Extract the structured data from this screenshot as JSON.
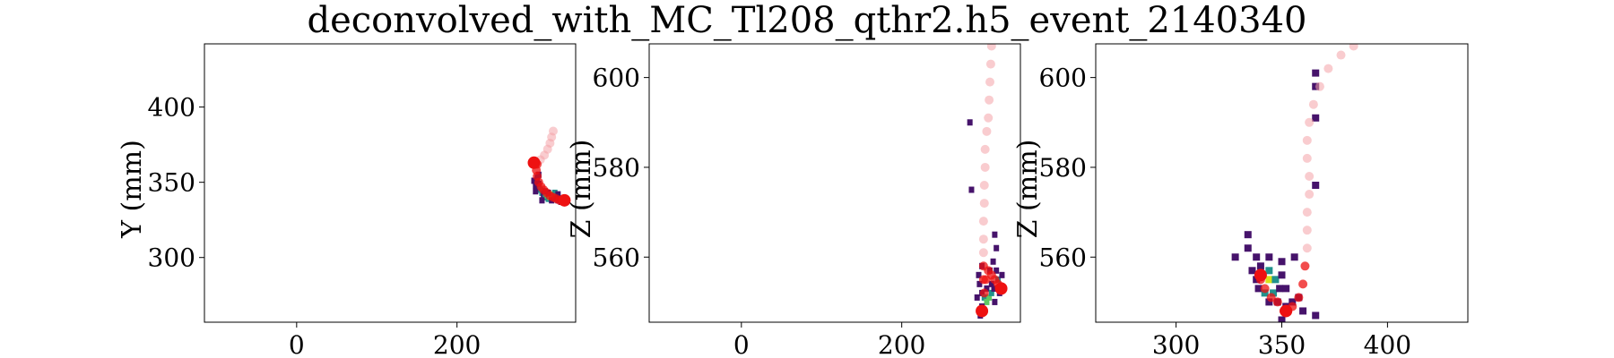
{
  "title": "deconvolved_with_MC_Tl208_qthr2.h5_event_2140340",
  "colors": {
    "track_light": "#f4a3a8",
    "track_dark": "#ee1111",
    "hit_low": "#46136b",
    "hit_mid": "#21918c",
    "hit_high": "#5ec962",
    "hit_peak": "#d8e219"
  },
  "chart_data": [
    {
      "type": "scatter",
      "panel": "xy",
      "xlabel": "",
      "ylabel": "Y (mm)",
      "xlim": [
        -115,
        348
      ],
      "ylim": [
        257,
        442
      ],
      "xticks": [
        0,
        200
      ],
      "yticks": [
        300,
        350,
        400
      ],
      "grid": false,
      "hits": [
        [
          296,
          351,
          0.2
        ],
        [
          298,
          348,
          0.4
        ],
        [
          300,
          346,
          0.5
        ],
        [
          302,
          349,
          0.3
        ],
        [
          304,
          345,
          0.6
        ],
        [
          306,
          343,
          0.7
        ],
        [
          308,
          342,
          0.5
        ],
        [
          310,
          340,
          0.6
        ],
        [
          312,
          341,
          0.8
        ],
        [
          314,
          339,
          0.7
        ],
        [
          316,
          340,
          0.9
        ],
        [
          318,
          342,
          1.0
        ],
        [
          320,
          341,
          0.9
        ],
        [
          322,
          339,
          0.7
        ],
        [
          324,
          340,
          0.5
        ],
        [
          326,
          338,
          0.4
        ],
        [
          328,
          339,
          0.3
        ],
        [
          330,
          337,
          0.2
        ],
        [
          300,
          353,
          0.3
        ],
        [
          302,
          355,
          0.2
        ],
        [
          306,
          338,
          0.3
        ],
        [
          310,
          344,
          0.4
        ],
        [
          314,
          343,
          0.5
        ],
        [
          318,
          338,
          0.4
        ],
        [
          322,
          343,
          0.6
        ],
        [
          326,
          342,
          0.5
        ],
        [
          332,
          339,
          0.2
        ],
        [
          298,
          344,
          0.2
        ]
      ],
      "track": [
        [
          320,
          384
        ],
        [
          318,
          380
        ],
        [
          316,
          376
        ],
        [
          313,
          372
        ],
        [
          309,
          368
        ],
        [
          304,
          365
        ],
        [
          300,
          362
        ],
        [
          299,
          358
        ],
        [
          300,
          354
        ],
        [
          302,
          350
        ],
        [
          305,
          347
        ],
        [
          308,
          345
        ],
        [
          312,
          343
        ],
        [
          316,
          341
        ],
        [
          320,
          340
        ],
        [
          324,
          339
        ],
        [
          328,
          338
        ],
        [
          332,
          338
        ]
      ],
      "track_ends": [
        [
          296,
          363
        ],
        [
          334,
          338
        ]
      ]
    },
    {
      "type": "scatter",
      "panel": "xz",
      "xlabel": "",
      "ylabel": "Z (mm)",
      "xlim": [
        -115,
        348
      ],
      "ylim": [
        545.5,
        607.5
      ],
      "xticks": [
        0,
        200
      ],
      "yticks": [
        560,
        580,
        600
      ],
      "grid": false,
      "hits": [
        [
          285,
          590,
          0.2
        ],
        [
          287,
          575,
          0.2
        ],
        [
          316,
          565,
          0.2
        ],
        [
          318,
          562,
          0.2
        ],
        [
          300,
          558,
          0.2
        ],
        [
          310,
          557,
          0.3
        ],
        [
          314,
          559,
          0.4
        ],
        [
          318,
          557,
          0.5
        ],
        [
          320,
          555,
          0.6
        ],
        [
          312,
          554,
          0.4
        ],
        [
          306,
          553,
          0.3
        ],
        [
          300,
          552,
          0.5
        ],
        [
          303,
          551,
          0.7
        ],
        [
          306,
          550,
          0.9
        ],
        [
          309,
          551,
          0.8
        ],
        [
          312,
          552,
          0.6
        ],
        [
          315,
          553,
          0.5
        ],
        [
          318,
          553,
          0.3
        ],
        [
          300,
          549,
          0.4
        ],
        [
          303,
          548,
          0.3
        ],
        [
          297,
          554,
          0.2
        ],
        [
          294,
          551,
          0.2
        ],
        [
          322,
          552,
          0.2
        ],
        [
          316,
          550,
          0.2
        ],
        [
          298,
          547,
          0.3
        ],
        [
          325,
          556,
          0.2
        ],
        [
          296,
          556,
          0.2
        ]
      ],
      "track": [
        [
          312,
          607
        ],
        [
          311,
          603
        ],
        [
          310,
          599
        ],
        [
          309,
          595
        ],
        [
          308,
          591
        ],
        [
          306,
          588
        ],
        [
          304,
          584
        ],
        [
          304,
          580
        ],
        [
          303,
          576
        ],
        [
          303,
          572
        ],
        [
          302,
          568
        ],
        [
          302,
          564
        ],
        [
          302,
          561
        ],
        [
          302,
          558
        ],
        [
          302,
          555
        ],
        [
          303,
          552
        ],
        [
          305,
          555
        ],
        [
          308,
          557
        ],
        [
          312,
          556
        ],
        [
          316,
          555
        ],
        [
          320,
          554
        ]
      ],
      "track_ends": [
        [
          300,
          548
        ],
        [
          324,
          553
        ]
      ]
    },
    {
      "type": "scatter",
      "panel": "yz",
      "xlabel": "",
      "ylabel": "Z (mm)",
      "xlim": [
        262,
        438
      ],
      "ylim": [
        545.5,
        607.5
      ],
      "xticks": [
        300,
        350,
        400
      ],
      "yticks": [
        560,
        580,
        600
      ],
      "grid": false,
      "hits": [
        [
          366,
          601,
          0.2
        ],
        [
          366,
          598,
          0.2
        ],
        [
          366,
          591,
          0.2
        ],
        [
          366,
          576,
          0.2
        ],
        [
          334,
          565,
          0.2
        ],
        [
          334,
          562,
          0.2
        ],
        [
          328,
          560,
          0.2
        ],
        [
          338,
          560,
          0.2
        ],
        [
          344,
          560,
          0.2
        ],
        [
          350,
          559,
          0.2
        ],
        [
          356,
          560,
          0.2
        ],
        [
          336,
          557,
          0.3
        ],
        [
          340,
          558,
          0.4
        ],
        [
          344,
          557,
          0.6
        ],
        [
          338,
          555,
          0.5
        ],
        [
          341,
          556,
          0.8
        ],
        [
          344,
          555,
          1.0
        ],
        [
          347,
          555,
          0.7
        ],
        [
          350,
          556,
          0.5
        ],
        [
          339,
          553,
          0.4
        ],
        [
          342,
          552,
          0.6
        ],
        [
          346,
          552,
          0.7
        ],
        [
          349,
          553,
          0.5
        ],
        [
          352,
          553,
          0.3
        ],
        [
          344,
          550,
          0.4
        ],
        [
          348,
          550,
          0.3
        ],
        [
          352,
          549,
          0.2
        ],
        [
          355,
          550,
          0.3
        ],
        [
          358,
          551,
          0.2
        ],
        [
          360,
          548,
          0.2
        ],
        [
          350,
          546,
          0.2
        ],
        [
          366,
          547,
          0.2
        ]
      ],
      "track": [
        [
          384,
          607
        ],
        [
          378,
          605
        ],
        [
          372,
          602
        ],
        [
          368,
          598
        ],
        [
          365,
          594
        ],
        [
          363,
          590
        ],
        [
          362,
          586
        ],
        [
          362,
          582
        ],
        [
          363,
          578
        ],
        [
          363,
          574
        ],
        [
          362,
          570
        ],
        [
          362,
          566
        ],
        [
          362,
          562
        ],
        [
          361,
          558
        ],
        [
          360,
          554
        ],
        [
          358,
          551
        ],
        [
          355,
          549
        ],
        [
          351,
          548
        ],
        [
          348,
          550
        ],
        [
          345,
          551
        ],
        [
          342,
          553
        ],
        [
          340,
          555
        ]
      ],
      "track_ends": [
        [
          340,
          556
        ],
        [
          352,
          548
        ]
      ]
    }
  ]
}
